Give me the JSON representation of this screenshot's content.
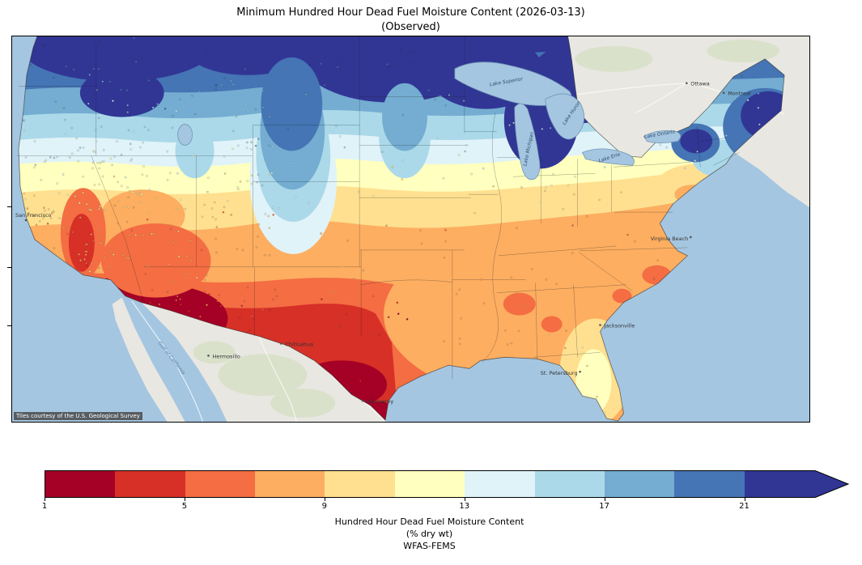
{
  "figure": {
    "title_line1": "Minimum Hundred Hour Dead Fuel Moisture Content (2026-03-13)",
    "title_line2": "(Observed)"
  },
  "map": {
    "attribution": "Tiles courtesy of the U.S. Geological Survey",
    "lakes": [
      {
        "id": "lake-superior",
        "label": "Lake Superior"
      },
      {
        "id": "lake-michigan",
        "label": "Lake Michigan"
      },
      {
        "id": "lake-huron",
        "label": "Lake Huron"
      },
      {
        "id": "lake-erie",
        "label": "Lake Erie"
      },
      {
        "id": "lake-ontario",
        "label": "Lake Ontario"
      }
    ],
    "places": [
      {
        "id": "san-francisco",
        "label": "San Francisco"
      },
      {
        "id": "hermosillo",
        "label": "Hermosillo"
      },
      {
        "id": "chihuahua",
        "label": "Chihuahua"
      },
      {
        "id": "monterrey",
        "label": "Monterrey"
      },
      {
        "id": "ottawa",
        "label": "Ottawa"
      },
      {
        "id": "montreal",
        "label": "Montreal"
      },
      {
        "id": "jacksonville",
        "label": "Jacksonville"
      },
      {
        "id": "st-petersburg",
        "label": "St. Petersburg"
      },
      {
        "id": "virginia-beach",
        "label": "Virginia Beach"
      },
      {
        "id": "gulf-of-california",
        "label": "Gulf of California"
      }
    ]
  },
  "colorbar": {
    "ticks": [
      "1",
      "5",
      "9",
      "13",
      "17",
      "21"
    ],
    "label_line1": "Hundred Hour Dead Fuel Moisture Content",
    "label_line2": "(% dry wt)",
    "label_line3": "WFAS-FEMS",
    "segment_colors": [
      "#a50026",
      "#d73027",
      "#f46d43",
      "#fdae61",
      "#fee090",
      "#ffffbf",
      "#e0f3f8",
      "#abd9e9",
      "#74add1",
      "#4575b4",
      "#313695"
    ],
    "extend_color": "#313695"
  },
  "chart_data": {
    "type": "heatmap",
    "subtype": "filled-contour-map-over-basemap",
    "title": "Minimum Hundred Hour Dead Fuel Moisture Content (2026-03-13)",
    "subtitle": "(Observed)",
    "date": "2026-03-13",
    "geography": "Contiguous United States, with surrounding Canada and Mexico basemap",
    "colorbar_label": "Hundred Hour Dead Fuel Moisture Content",
    "units": "% dry wt",
    "source": "WFAS-FEMS",
    "value_ticks": [
      1,
      5,
      9,
      13,
      17,
      21
    ],
    "level_boundaries": [
      1,
      3,
      5,
      7,
      9,
      11,
      13,
      15,
      17,
      19,
      21,
      23
    ],
    "level_colors": [
      "#a50026",
      "#d73027",
      "#f46d43",
      "#fdae61",
      "#fee090",
      "#ffffbf",
      "#e0f3f8",
      "#abd9e9",
      "#74add1",
      "#4575b4",
      "#313695"
    ],
    "colormap": "RdYlBu",
    "extend": "max",
    "legend_position": "bottom horizontal colorbar with right-pointing extend arrow",
    "regions_summary": [
      {
        "region": "Desert Southwest: southern California, Arizona, southern New Mexico, far west Texas",
        "value_range": "1-3 (driest)"
      },
      {
        "region": "Southern and western Texas, Rio Grande valley",
        "value_range": "3-5"
      },
      {
        "region": "California Central Valley, southern Nevada and Utah, Oklahoma, east Texas",
        "value_range": "5-7"
      },
      {
        "region": "Southeast from Louisiana through Georgia to the Carolinas; coastal mid-Atlantic",
        "value_range": "7-9"
      },
      {
        "region": "Central Plains, lower Midwest, Ohio Valley, interior mid-Atlantic",
        "value_range": "9-13"
      },
      {
        "region": "Florida peninsula interior",
        "value_range": "11-15"
      },
      {
        "region": "High Rockies, Pacific Northwest, southern New England",
        "value_range": "13-19"
      },
      {
        "region": "Northern tier: Montana, Dakotas, Minnesota, Wisconsin, Michigan, Great Lakes, northern Maine",
        "value_range": "19-23+ (wettest)"
      }
    ],
    "station_markers": "Hundreds of small colored observation-station dots scattered over the map, colored on the same scale; densest in California, the Great Basin and the Southeast"
  }
}
